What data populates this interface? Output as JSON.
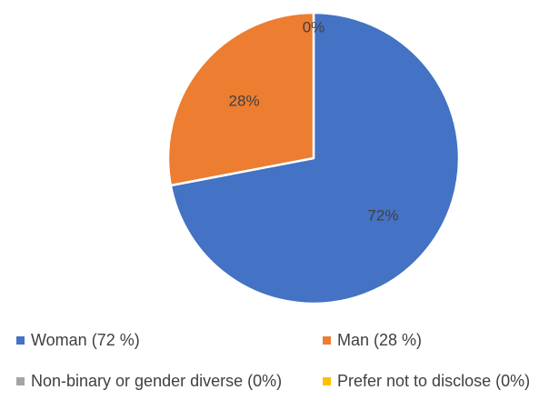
{
  "chart_data": {
    "type": "pie",
    "categories": [
      "Woman (72 %)",
      "Man (28 %)",
      "Non-binary or gender diverse (0%)",
      "Prefer not to disclose (0%)"
    ],
    "values": [
      72,
      28,
      0,
      0
    ],
    "data_labels": [
      "72%",
      "28%",
      "0%",
      ""
    ],
    "colors": [
      "#4472C4",
      "#ED7D31",
      "#A5A5A5",
      "#FFC000"
    ],
    "legend_position": "bottom",
    "start_angle_deg": 0,
    "direction": "clockwise"
  }
}
